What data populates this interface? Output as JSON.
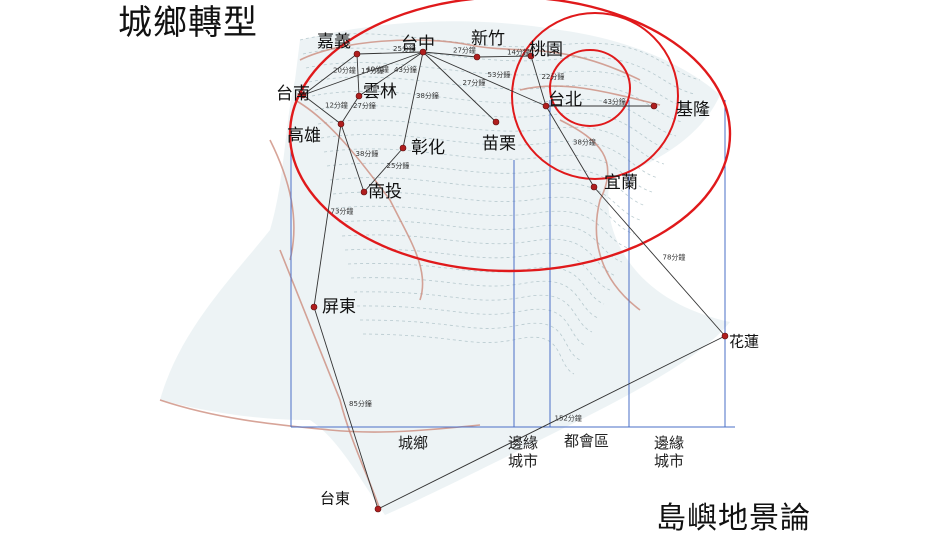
{
  "titles": {
    "main": "城鄉轉型",
    "sub": "島嶼地景論"
  },
  "colors": {
    "circle": "#e0191b",
    "route": "#333333",
    "zone_line": "#4a6fc7",
    "city_dot": "#b01e1e",
    "land_tint": "#dfe9ec",
    "road": "#c98576",
    "contour": "#9fb7bd"
  },
  "cities": [
    {
      "id": "jiayi",
      "name": "嘉義"
    },
    {
      "id": "taizhong",
      "name": "台中"
    },
    {
      "id": "xinzhu",
      "name": "新竹"
    },
    {
      "id": "taoyuan",
      "name": "桃園"
    },
    {
      "id": "tainan",
      "name": "台南"
    },
    {
      "id": "yunlin",
      "name": "雲林"
    },
    {
      "id": "taibei",
      "name": "台北"
    },
    {
      "id": "jilong",
      "name": "基隆"
    },
    {
      "id": "gaoxiong",
      "name": "高雄"
    },
    {
      "id": "zhanghua",
      "name": "彰化"
    },
    {
      "id": "miaoli",
      "name": "苗栗"
    },
    {
      "id": "yilan",
      "name": "宜蘭"
    },
    {
      "id": "nantou",
      "name": "南投"
    },
    {
      "id": "pingdong",
      "name": "屏東"
    },
    {
      "id": "hualian",
      "name": "花蓮"
    },
    {
      "id": "taidong",
      "name": "台東"
    }
  ],
  "routes": [
    {
      "from": "jiayi",
      "to": "taizhong",
      "time": "25分鐘"
    },
    {
      "from": "taizhong",
      "to": "xinzhu",
      "time": "27分鐘"
    },
    {
      "from": "xinzhu",
      "to": "taoyuan",
      "time": "14分鐘"
    },
    {
      "from": "taizhong",
      "to": "taibei",
      "time": "53分鐘"
    },
    {
      "from": "taoyuan",
      "to": "taibei",
      "time": "22分鐘"
    },
    {
      "from": "taizhong",
      "to": "miaoli",
      "time": "27分鐘"
    },
    {
      "from": "jiayi",
      "to": "tainan",
      "time": "20分鐘"
    },
    {
      "from": "jiayi",
      "to": "yunlin",
      "time": "17分鐘"
    },
    {
      "from": "taizhong",
      "to": "yunlin",
      "time": "43分鐘"
    },
    {
      "from": "taizhong",
      "to": "zhanghua",
      "time": "38分鐘"
    },
    {
      "from": "taizhong",
      "to": "tainan",
      "time": "40分鐘"
    },
    {
      "from": "tainan",
      "to": "gaoxiong",
      "time": "12分鐘"
    },
    {
      "from": "yunlin",
      "to": "gaoxiong",
      "time": "27分鐘"
    },
    {
      "from": "gaoxiong",
      "to": "nantou",
      "time": "38分鐘"
    },
    {
      "from": "zhanghua",
      "to": "nantou",
      "time": "25分鐘"
    },
    {
      "from": "taibei",
      "to": "jilong",
      "time": "43分鐘"
    },
    {
      "from": "taibei",
      "to": "yilan",
      "time": "38分鐘"
    },
    {
      "from": "gaoxiong",
      "to": "pingdong",
      "time": "73分鐘"
    },
    {
      "from": "yilan",
      "to": "hualian",
      "time": "78分鐘"
    },
    {
      "from": "pingdong",
      "to": "taidong",
      "time": "85分鐘"
    },
    {
      "from": "hualian",
      "to": "taidong",
      "time": "152分鐘"
    }
  ],
  "zones": {
    "rural": "城鄉",
    "edge_city_left": [
      "邊緣",
      "城市"
    ],
    "metro": "都會區",
    "edge_city_right": [
      "邊緣",
      "城市"
    ]
  }
}
